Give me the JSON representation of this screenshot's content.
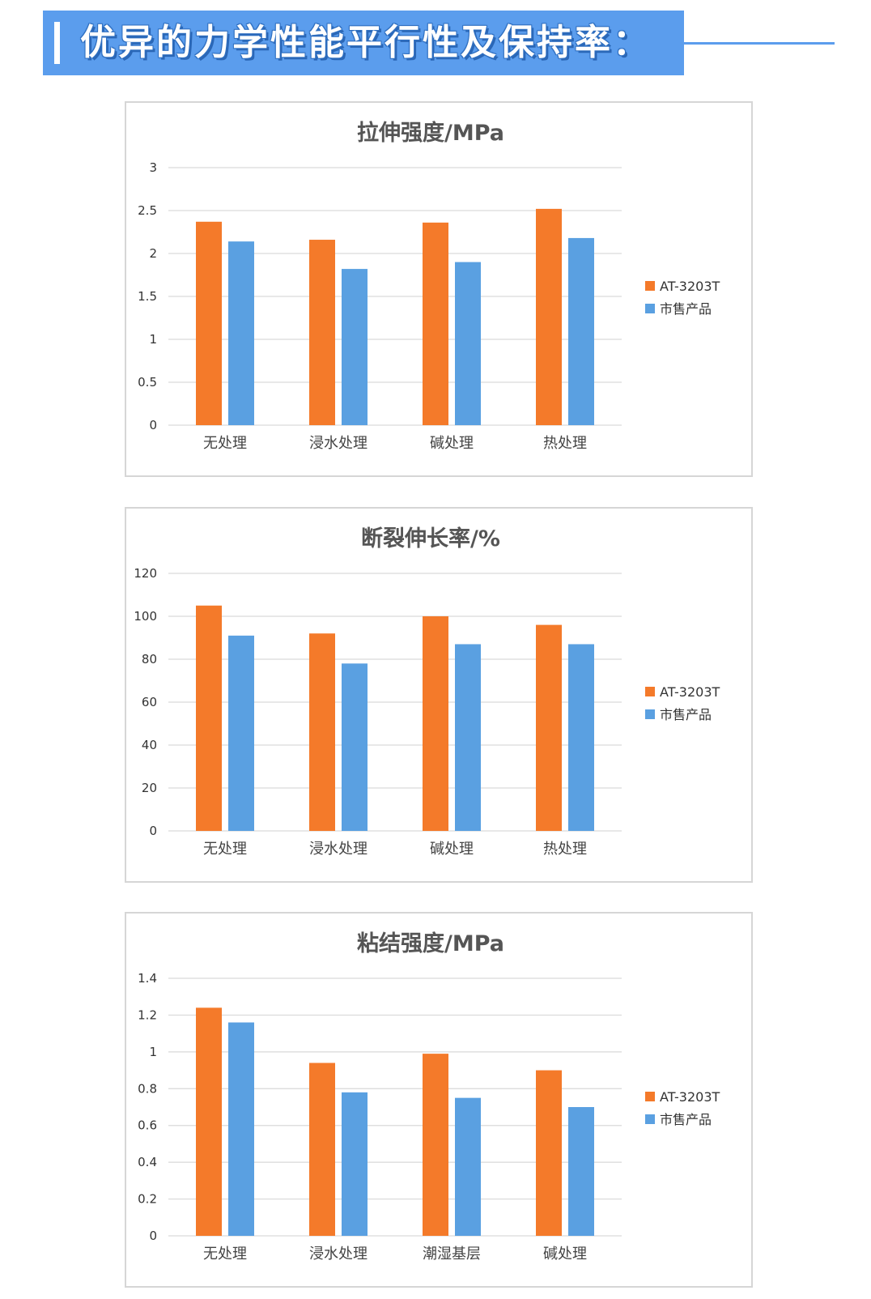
{
  "header": {
    "title": "优异的力学性能平行性及保持率："
  },
  "colors": {
    "at_3203t": "#f47a2a",
    "market": "#5aa0e1",
    "banner": "#5b9ded"
  },
  "chart_data": [
    {
      "type": "bar",
      "title": "拉伸强度/MPa",
      "categories": [
        "无处理",
        "浸水处理",
        "碱处理",
        "热处理"
      ],
      "series": [
        {
          "name": "AT-3203T",
          "values": [
            2.37,
            2.16,
            2.36,
            2.52
          ]
        },
        {
          "name": "市售产品",
          "values": [
            2.14,
            1.82,
            1.9,
            2.18
          ]
        }
      ],
      "ylim": [
        0,
        3
      ],
      "yticks": [
        "0",
        "0.5",
        "1",
        "1.5",
        "2",
        "2.5",
        "3"
      ],
      "grid": true,
      "legend": "right"
    },
    {
      "type": "bar",
      "title": "断裂伸长率/%",
      "categories": [
        "无处理",
        "浸水处理",
        "碱处理",
        "热处理"
      ],
      "series": [
        {
          "name": "AT-3203T",
          "values": [
            105,
            92,
            100,
            96
          ]
        },
        {
          "name": "市售产品",
          "values": [
            91,
            78,
            87,
            87
          ]
        }
      ],
      "ylim": [
        0,
        120
      ],
      "yticks": [
        "0",
        "20",
        "40",
        "60",
        "80",
        "100",
        "120"
      ],
      "grid": true,
      "legend": "right"
    },
    {
      "type": "bar",
      "title": "粘结强度/MPa",
      "categories": [
        "无处理",
        "浸水处理",
        "潮湿基层",
        "碱处理"
      ],
      "series": [
        {
          "name": "AT-3203T",
          "values": [
            1.24,
            0.94,
            0.99,
            0.9
          ]
        },
        {
          "name": "市售产品",
          "values": [
            1.16,
            0.78,
            0.75,
            0.7
          ]
        }
      ],
      "ylim": [
        0,
        1.4
      ],
      "yticks": [
        "0",
        "0.2",
        "0.4",
        "0.6",
        "0.8",
        "1",
        "1.2",
        "1.4"
      ],
      "grid": true,
      "legend": "right"
    }
  ]
}
